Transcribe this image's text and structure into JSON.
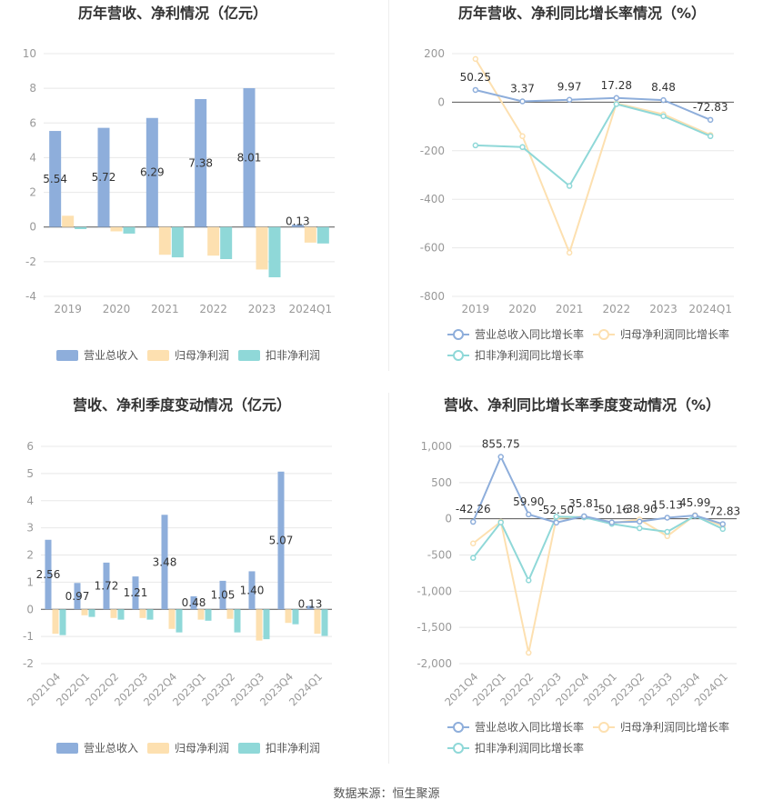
{
  "source": "数据来源：恒生聚源",
  "chart_data": [
    {
      "type": "bar",
      "title": "历年营收、净利情况（亿元）",
      "categories": [
        "2019",
        "2020",
        "2021",
        "2022",
        "2023",
        "2024Q1"
      ],
      "ylim": [
        -4,
        10
      ],
      "yticks": [
        -4,
        -2,
        0,
        2,
        4,
        6,
        8,
        10
      ],
      "series": [
        {
          "name": "营业总收入",
          "color": "#8eaedb",
          "values": [
            5.54,
            5.72,
            6.29,
            7.38,
            8.01,
            0.13
          ],
          "labels": [
            "5.54",
            "5.72",
            "6.29",
            "7.38",
            "8.01",
            "0.13"
          ]
        },
        {
          "name": "归母净利润",
          "color": "#fde0b0",
          "values": [
            0.65,
            -0.25,
            -1.6,
            -1.65,
            -2.45,
            -0.9
          ]
        },
        {
          "name": "扣非净利润",
          "color": "#8fd8d8",
          "values": [
            -0.12,
            -0.38,
            -1.75,
            -1.85,
            -2.9,
            -0.95
          ]
        }
      ],
      "legend_position": "bottom",
      "grid": true
    },
    {
      "type": "line",
      "title": "历年营收、净利同比增长率情况（%）",
      "categories": [
        "2019",
        "2020",
        "2021",
        "2022",
        "2023",
        "2024Q1"
      ],
      "ylim": [
        -800,
        200
      ],
      "yticks": [
        -800,
        -600,
        -400,
        -200,
        0,
        200
      ],
      "series": [
        {
          "name": "营业总收入同比增长率",
          "color": "#8eaedb",
          "values": [
            50.25,
            3.37,
            9.97,
            17.28,
            8.48,
            -72.83
          ],
          "labels": [
            "50.25",
            "3.37",
            "9.97",
            "17.28",
            "8.48",
            "-72.83"
          ]
        },
        {
          "name": "归母净利润同比增长率",
          "color": "#fde0b0",
          "values": [
            178,
            -140,
            -620,
            -5,
            -50,
            -135
          ]
        },
        {
          "name": "扣非净利润同比增长率",
          "color": "#8fd8d8",
          "values": [
            -178,
            -185,
            -345,
            -8,
            -58,
            -140
          ]
        }
      ],
      "legend_position": "bottom",
      "grid": true
    },
    {
      "type": "bar",
      "title": "营收、净利季度变动情况（亿元）",
      "categories": [
        "2021Q4",
        "2022Q1",
        "2022Q2",
        "2022Q3",
        "2022Q4",
        "2023Q1",
        "2023Q2",
        "2023Q3",
        "2023Q4",
        "2024Q1"
      ],
      "ylim": [
        -2,
        6
      ],
      "yticks": [
        -2,
        -1,
        0,
        1,
        2,
        3,
        4,
        5,
        6
      ],
      "series": [
        {
          "name": "营业总收入",
          "color": "#8eaedb",
          "values": [
            2.56,
            0.97,
            1.72,
            1.21,
            3.48,
            0.48,
            1.05,
            1.4,
            5.07,
            0.13
          ],
          "labels": [
            "2.56",
            "0.97",
            "1.72",
            "1.21",
            "3.48",
            "0.48",
            "1.05",
            "1.40",
            "5.07",
            "0.13"
          ]
        },
        {
          "name": "归母净利润",
          "color": "#fde0b0",
          "values": [
            -0.9,
            -0.22,
            -0.32,
            -0.32,
            -0.72,
            -0.38,
            -0.35,
            -1.15,
            -0.5,
            -0.9
          ]
        },
        {
          "name": "扣非净利润",
          "color": "#8fd8d8",
          "values": [
            -0.95,
            -0.28,
            -0.38,
            -0.38,
            -0.85,
            -0.42,
            -0.85,
            -1.1,
            -0.55,
            -0.98
          ]
        }
      ],
      "legend_position": "bottom",
      "grid": true
    },
    {
      "type": "line",
      "title": "营收、净利同比增长率季度变动情况（%）",
      "categories": [
        "2021Q4",
        "2022Q1",
        "2022Q2",
        "2022Q3",
        "2022Q4",
        "2023Q1",
        "2023Q2",
        "2023Q3",
        "2023Q4",
        "2024Q1"
      ],
      "ylim": [
        -2000,
        1000
      ],
      "yticks": [
        -2000,
        -1500,
        -1000,
        -500,
        0,
        500,
        1000
      ],
      "ytick_labels": [
        "-2,000",
        "-1,500",
        "-1,000",
        "-500",
        "0",
        "500",
        "1,000"
      ],
      "series": [
        {
          "name": "营业总收入同比增长率",
          "color": "#8eaedb",
          "values": [
            -42.26,
            855.75,
            59.9,
            -52.5,
            35.81,
            -50.16,
            -38.9,
            15.13,
            45.99,
            -72.83
          ],
          "labels": [
            "-42.26",
            "855.75",
            "59.90",
            "-52.50",
            "35.81",
            "-50.16",
            "-38.90",
            "15.13",
            "45.99",
            "-72.83"
          ]
        },
        {
          "name": "归母净利润同比增长率",
          "color": "#fde0b0",
          "values": [
            -340,
            -40,
            -1850,
            10,
            30,
            -60,
            -10,
            -240,
            50,
            -100
          ]
        },
        {
          "name": "扣非净利润同比增长率",
          "color": "#8fd8d8",
          "values": [
            -540,
            -50,
            -850,
            30,
            20,
            -70,
            -130,
            -180,
            40,
            -140
          ]
        }
      ],
      "legend_position": "bottom",
      "grid": true
    }
  ]
}
